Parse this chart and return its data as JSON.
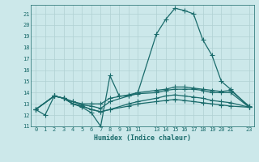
{
  "xlabel": "Humidex (Indice chaleur)",
  "bg_color": "#cce8ea",
  "grid_color": "#b0d0d2",
  "line_color": "#1a6b6b",
  "xlim": [
    -0.5,
    23.5
  ],
  "ylim": [
    11,
    21.8
  ],
  "xticks": [
    0,
    1,
    2,
    3,
    4,
    5,
    6,
    7,
    8,
    9,
    10,
    11,
    13,
    14,
    15,
    16,
    17,
    18,
    19,
    20,
    21,
    23
  ],
  "yticks": [
    11,
    12,
    13,
    14,
    15,
    16,
    17,
    18,
    19,
    20,
    21
  ],
  "curve1_x": [
    0,
    1,
    2,
    3,
    4,
    5,
    6,
    7,
    8,
    9,
    10,
    11,
    13,
    14,
    15,
    16,
    17,
    18,
    19,
    20,
    21,
    23
  ],
  "curve1_y": [
    12.5,
    12.0,
    13.7,
    13.5,
    13.0,
    12.7,
    12.2,
    11.0,
    15.5,
    13.7,
    13.7,
    14.0,
    19.2,
    20.5,
    21.5,
    21.3,
    21.0,
    18.7,
    17.3,
    15.0,
    14.3,
    12.7
  ],
  "curve2_x": [
    0,
    2,
    3,
    4,
    5,
    6,
    7,
    8,
    10,
    11,
    13,
    14,
    15,
    16,
    17,
    18,
    19,
    20,
    21,
    23
  ],
  "curve2_y": [
    12.5,
    13.7,
    13.5,
    13.2,
    13.0,
    13.0,
    13.0,
    13.5,
    13.8,
    14.0,
    14.2,
    14.3,
    14.5,
    14.5,
    14.4,
    14.3,
    14.2,
    14.1,
    14.2,
    12.8
  ],
  "curve3_x": [
    0,
    2,
    3,
    4,
    5,
    6,
    7,
    8,
    10,
    11,
    13,
    14,
    15,
    16,
    17,
    18,
    19,
    20,
    21,
    23
  ],
  "curve3_y": [
    12.5,
    13.7,
    13.5,
    13.2,
    12.9,
    12.8,
    12.6,
    13.2,
    13.7,
    13.9,
    14.0,
    14.2,
    14.3,
    14.3,
    14.3,
    14.2,
    14.0,
    14.0,
    14.0,
    12.7
  ],
  "curve4_x": [
    0,
    2,
    3,
    4,
    5,
    6,
    7,
    8,
    10,
    11,
    13,
    14,
    15,
    16,
    17,
    18,
    19,
    20,
    21,
    23
  ],
  "curve4_y": [
    12.5,
    13.7,
    13.5,
    13.0,
    12.8,
    12.5,
    12.3,
    12.5,
    13.0,
    13.2,
    13.5,
    13.7,
    13.8,
    13.7,
    13.6,
    13.5,
    13.3,
    13.2,
    13.1,
    12.7
  ],
  "curve5_x": [
    0,
    2,
    3,
    4,
    5,
    6,
    7,
    8,
    10,
    11,
    13,
    14,
    15,
    16,
    17,
    18,
    19,
    20,
    21,
    23
  ],
  "curve5_y": [
    12.5,
    13.7,
    13.5,
    13.0,
    12.8,
    12.5,
    12.3,
    12.5,
    12.8,
    13.0,
    13.2,
    13.3,
    13.4,
    13.3,
    13.2,
    13.1,
    13.0,
    12.9,
    12.8,
    12.7
  ]
}
